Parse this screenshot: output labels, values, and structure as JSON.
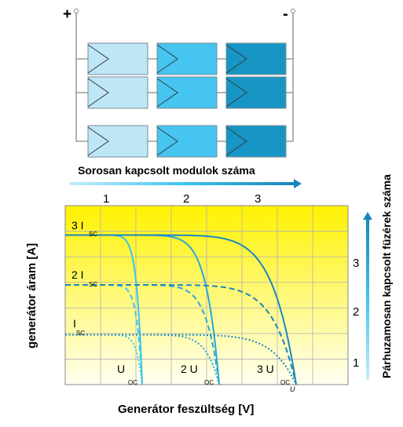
{
  "top": {
    "plus": "+",
    "minus": "-",
    "series_label": "Sorosan kapcsolt modulok száma",
    "series_numbers": [
      "1",
      "2",
      "3"
    ],
    "module_colors": [
      "#bde6f7",
      "#45c5ef",
      "#1796c5"
    ],
    "wire_color": "#888888"
  },
  "parallel_label": "Párhuzamosan kapcsolt füzérek száma",
  "parallel_numbers": [
    "1",
    "2",
    "3"
  ],
  "chart_data": {
    "type": "line",
    "ylabel": "generátor áram [A]",
    "xlabel": "Generátor feszültség [V]",
    "y_annotations": [
      {
        "text": "3 I",
        "sub": "SC"
      },
      {
        "text": "2 I",
        "sub": "SC"
      },
      {
        "text": "I",
        "sub": "SC"
      }
    ],
    "x_annotations": [
      {
        "text": "U",
        "sub": "OC"
      },
      {
        "text": "2 U",
        "sub": "OC"
      },
      {
        "text": "3 U",
        "sub": "OC"
      }
    ],
    "x_axis_end_label": "U",
    "x_grid_count": 8,
    "y_grid_count": 7,
    "series": [
      {
        "parallel": 3,
        "series_count": 1,
        "style": "solid",
        "isc": 3,
        "voc": 1
      },
      {
        "parallel": 3,
        "series_count": 2,
        "style": "solid",
        "isc": 3,
        "voc": 2
      },
      {
        "parallel": 3,
        "series_count": 3,
        "style": "solid",
        "isc": 3,
        "voc": 3
      },
      {
        "parallel": 2,
        "series_count": 1,
        "style": "dashed",
        "isc": 2,
        "voc": 1
      },
      {
        "parallel": 2,
        "series_count": 2,
        "style": "dashed",
        "isc": 2,
        "voc": 2
      },
      {
        "parallel": 2,
        "series_count": 3,
        "style": "dashed",
        "isc": 2,
        "voc": 3
      },
      {
        "parallel": 1,
        "series_count": 1,
        "style": "dotted",
        "isc": 1,
        "voc": 1
      },
      {
        "parallel": 1,
        "series_count": 2,
        "style": "dotted",
        "isc": 1,
        "voc": 2
      },
      {
        "parallel": 1,
        "series_count": 3,
        "style": "dotted",
        "isc": 1,
        "voc": 3
      }
    ],
    "colors": [
      "#3fc4ee",
      "#2aa8db",
      "#1a88c0"
    ]
  }
}
